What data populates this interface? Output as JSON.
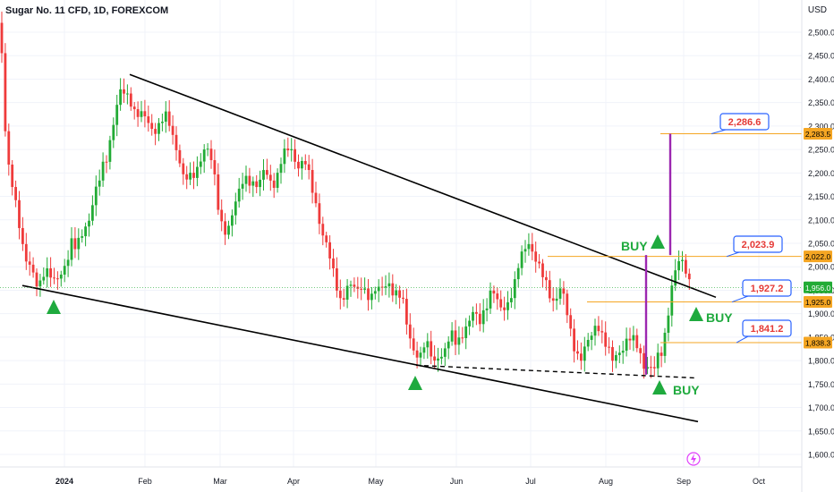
{
  "header": {
    "title": "Sugar No. 11 CFD, 1D, FOREXCOM",
    "currency": "USD"
  },
  "colors": {
    "up": "#26a69a",
    "up_bright": "#22ab35",
    "down": "#ef3b3b",
    "trendline": "#000000",
    "level": "#f5a623",
    "target": "#9c27b0",
    "buy": "#1faa3e",
    "callout": "#2962ff"
  },
  "chart_data": {
    "type": "candlestick",
    "title": "Sugar No. 11 CFD, 1D, FOREXCOM",
    "ylim": [
      1575,
      2550
    ],
    "y_ticks": [
      "2,500.0",
      "2,450.0",
      "2,400.0",
      "2,350.0",
      "2,300.0",
      "2,250.0",
      "2,200.0",
      "2,150.0",
      "2,100.0",
      "2,050.0",
      "2,000.0",
      "1,950.0",
      "1,900.0",
      "1,850.0",
      "1,800.0",
      "1,750.0",
      "1,700.0",
      "1,650.0",
      "1,600.0"
    ],
    "x_labels": [
      "2024",
      "Feb",
      "Mar",
      "Apr",
      "May",
      "Jun",
      "Jul",
      "Aug",
      "Sep",
      "Oct"
    ],
    "price_levels": [
      {
        "value": 2283.5,
        "label": "2,283.5"
      },
      {
        "value": 2022.0,
        "label": "2,022.0"
      },
      {
        "value": 1956.0,
        "label": "1,956.0"
      },
      {
        "value": 1925.0,
        "label": "1,925.0"
      },
      {
        "value": 1838.3,
        "label": "1,838.3"
      }
    ],
    "callouts": [
      "2,286.6",
      "2,023.9",
      "1,927.2",
      "1,841.2"
    ],
    "signals": [
      "BUY",
      "BUY",
      "BUY"
    ],
    "path": [
      [
        0,
        2520
      ],
      [
        2,
        2450
      ],
      [
        5,
        2300
      ],
      [
        10,
        2200
      ],
      [
        15,
        2170
      ],
      [
        20,
        2120
      ],
      [
        25,
        2050
      ],
      [
        30,
        2000
      ],
      [
        35,
        1990
      ],
      [
        40,
        1965
      ],
      [
        45,
        1975
      ],
      [
        50,
        2000
      ],
      [
        55,
        1980
      ],
      [
        60,
        1960
      ],
      [
        65,
        1975
      ],
      [
        70,
        2000
      ],
      [
        75,
        2020
      ],
      [
        80,
        2050
      ],
      [
        85,
        2030
      ],
      [
        90,
        2060
      ],
      [
        95,
        2090
      ],
      [
        100,
        2110
      ],
      [
        105,
        2150
      ],
      [
        110,
        2170
      ],
      [
        115,
        2210
      ],
      [
        120,
        2240
      ],
      [
        125,
        2300
      ],
      [
        130,
        2340
      ],
      [
        135,
        2370
      ],
      [
        140,
        2360
      ],
      [
        145,
        2360
      ],
      [
        150,
        2340
      ],
      [
        155,
        2330
      ],
      [
        160,
        2320
      ],
      [
        165,
        2300
      ],
      [
        170,
        2290
      ],
      [
        175,
        2300
      ],
      [
        180,
        2320
      ],
      [
        185,
        2320
      ],
      [
        190,
        2290
      ],
      [
        195,
        2260
      ],
      [
        200,
        2240
      ],
      [
        205,
        2200
      ],
      [
        210,
        2190
      ],
      [
        215,
        2180
      ],
      [
        220,
        2200
      ],
      [
        225,
        2240
      ],
      [
        230,
        2270
      ],
      [
        235,
        2240
      ],
      [
        240,
        2180
      ],
      [
        245,
        2100
      ],
      [
        250,
        2080
      ],
      [
        255,
        2090
      ],
      [
        260,
        2120
      ],
      [
        265,
        2140
      ],
      [
        270,
        2170
      ],
      [
        275,
        2190
      ],
      [
        280,
        2190
      ],
      [
        285,
        2180
      ],
      [
        290,
        2170
      ],
      [
        295,
        2200
      ],
      [
        300,
        2190
      ],
      [
        305,
        2180
      ],
      [
        310,
        2200
      ],
      [
        315,
        2230
      ],
      [
        320,
        2240
      ],
      [
        325,
        2250
      ],
      [
        330,
        2230
      ],
      [
        335,
        2220
      ],
      [
        340,
        2230
      ],
      [
        345,
        2190
      ],
      [
        350,
        2150
      ],
      [
        355,
        2120
      ],
      [
        360,
        2080
      ],
      [
        365,
        2050
      ],
      [
        370,
        2000
      ],
      [
        375,
        1960
      ],
      [
        380,
        1930
      ],
      [
        385,
        1950
      ],
      [
        390,
        1970
      ],
      [
        395,
        1950
      ],
      [
        400,
        1940
      ],
      [
        405,
        1960
      ],
      [
        410,
        1950
      ],
      [
        415,
        1940
      ],
      [
        420,
        1950
      ],
      [
        425,
        1940
      ],
      [
        430,
        1960
      ],
      [
        435,
        1970
      ],
      [
        440,
        1950
      ],
      [
        445,
        1940
      ],
      [
        450,
        1920
      ],
      [
        455,
        1870
      ],
      [
        460,
        1840
      ],
      [
        465,
        1820
      ],
      [
        470,
        1810
      ],
      [
        475,
        1830
      ],
      [
        480,
        1820
      ],
      [
        485,
        1800
      ],
      [
        490,
        1820
      ],
      [
        495,
        1810
      ],
      [
        500,
        1830
      ],
      [
        505,
        1850
      ],
      [
        510,
        1840
      ],
      [
        515,
        1860
      ],
      [
        520,
        1870
      ],
      [
        525,
        1880
      ],
      [
        530,
        1900
      ],
      [
        535,
        1880
      ],
      [
        540,
        1910
      ],
      [
        545,
        1930
      ],
      [
        550,
        1950
      ],
      [
        555,
        1920
      ],
      [
        560,
        1910
      ],
      [
        565,
        1920
      ],
      [
        570,
        1940
      ],
      [
        575,
        1960
      ],
      [
        580,
        2000
      ],
      [
        585,
        2030
      ],
      [
        590,
        2060
      ],
      [
        595,
        2040
      ],
      [
        600,
        2010
      ],
      [
        605,
        1980
      ],
      [
        610,
        1960
      ],
      [
        615,
        1940
      ],
      [
        620,
        1930
      ],
      [
        625,
        1960
      ],
      [
        630,
        1930
      ],
      [
        635,
        1880
      ],
      [
        640,
        1840
      ],
      [
        645,
        1820
      ],
      [
        650,
        1810
      ],
      [
        655,
        1830
      ],
      [
        660,
        1840
      ],
      [
        665,
        1870
      ],
      [
        670,
        1880
      ],
      [
        675,
        1850
      ],
      [
        680,
        1820
      ],
      [
        685,
        1790
      ],
      [
        690,
        1810
      ],
      [
        695,
        1830
      ],
      [
        700,
        1850
      ],
      [
        705,
        1850
      ],
      [
        710,
        1830
      ],
      [
        715,
        1810
      ],
      [
        720,
        1790
      ],
      [
        725,
        1800
      ],
      [
        730,
        1780
      ],
      [
        735,
        1800
      ],
      [
        740,
        1810
      ],
      [
        745,
        1880
      ],
      [
        750,
        1960
      ],
      [
        755,
        2000
      ],
      [
        760,
        2010
      ],
      [
        765,
        1990
      ],
      [
        770,
        1970
      ],
      [
        775,
        1960
      ]
    ]
  }
}
